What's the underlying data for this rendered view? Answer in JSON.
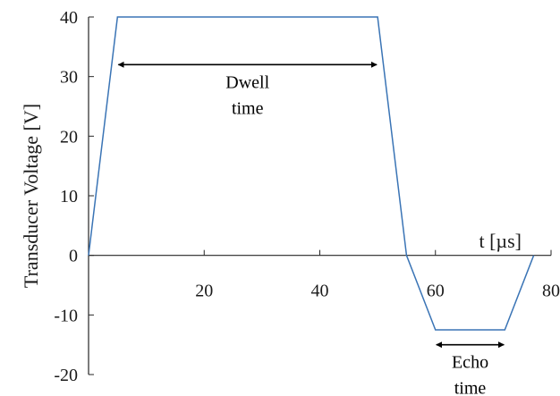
{
  "chart_data": {
    "type": "line",
    "title": "",
    "xlabel": "t [µs]",
    "ylabel": "Transducer Voltage [V]",
    "xlim": [
      0,
      80
    ],
    "ylim": [
      -20,
      40
    ],
    "x_ticks": [
      "20",
      "40",
      "60",
      "80"
    ],
    "y_ticks": [
      "40",
      "30",
      "20",
      "10",
      "0",
      "-10",
      "-20"
    ],
    "grid": false,
    "series": [
      {
        "color": "#3a74b5",
        "x": [
          0,
          5,
          50,
          55,
          60,
          72,
          77
        ],
        "y": [
          0,
          40,
          40,
          0,
          -12.5,
          -12.5,
          0
        ]
      }
    ],
    "annotations": [
      {
        "line1": "Dwell",
        "line2": "time",
        "x_start": 5,
        "x_end": 50,
        "y": 32
      },
      {
        "line1": "Echo",
        "line2": "time",
        "x_start": 60,
        "x_end": 72,
        "y": -15
      }
    ]
  }
}
